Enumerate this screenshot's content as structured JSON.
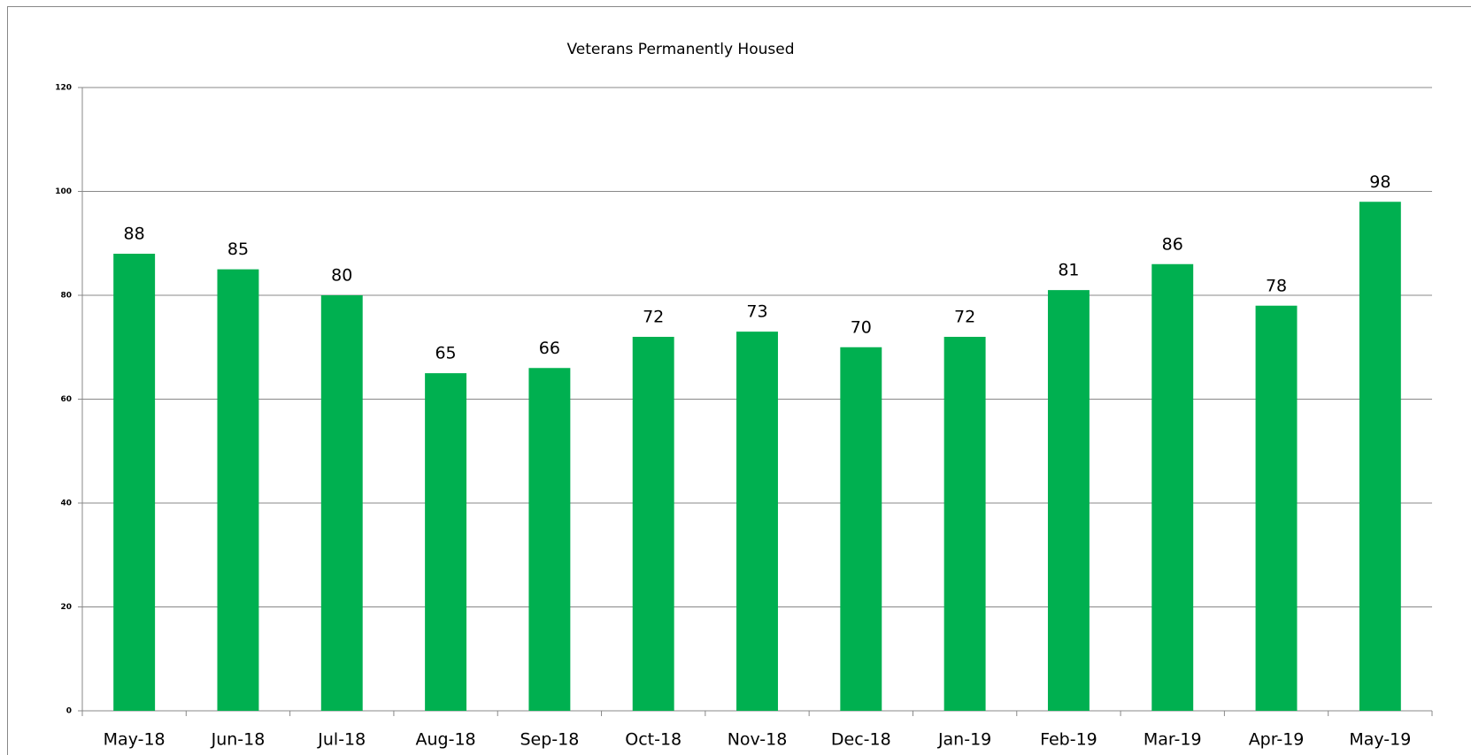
{
  "chart_data": {
    "type": "bar",
    "title": "Veterans Permanently Housed",
    "categories": [
      "May-18",
      "Jun-18",
      "Jul-18",
      "Aug-18",
      "Sep-18",
      "Oct-18",
      "Nov-18",
      "Dec-18",
      "Jan-19",
      "Feb-19",
      "Mar-19",
      "Apr-19",
      "May-19"
    ],
    "values": [
      88,
      85,
      80,
      65,
      66,
      72,
      73,
      70,
      72,
      81,
      86,
      78,
      98
    ],
    "color": "#00b050",
    "ylim": [
      0,
      120
    ],
    "yticks": [
      0,
      20,
      40,
      60,
      80,
      100,
      120
    ],
    "grid": true
  }
}
